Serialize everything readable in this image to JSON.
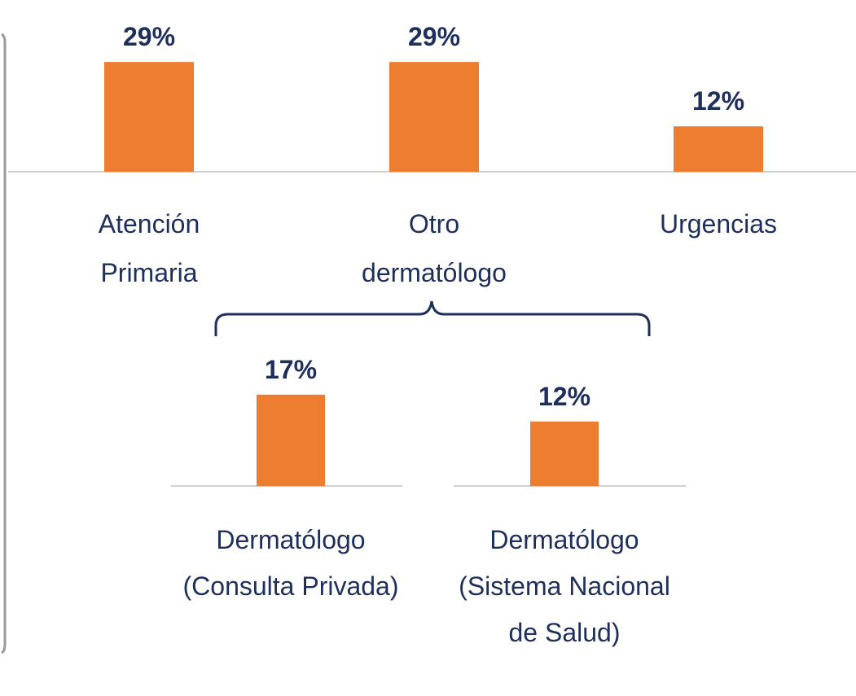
{
  "chart_data": [
    {
      "type": "bar",
      "categories": [
        "Atención Primaria",
        "Otro dermatólogo",
        "Urgencias"
      ],
      "values": [
        29,
        29,
        12
      ],
      "value_labels": [
        "29%",
        "29%",
        "12%"
      ],
      "color": "#ED7D31"
    },
    {
      "type": "bar",
      "categories": [
        "Dermatólogo (Consulta Privada)",
        "Dermatólogo (Sistema Nacional de Salud)"
      ],
      "values": [
        17,
        12
      ],
      "value_labels": [
        "17%",
        "12%"
      ],
      "color": "#ED7D31"
    }
  ]
}
